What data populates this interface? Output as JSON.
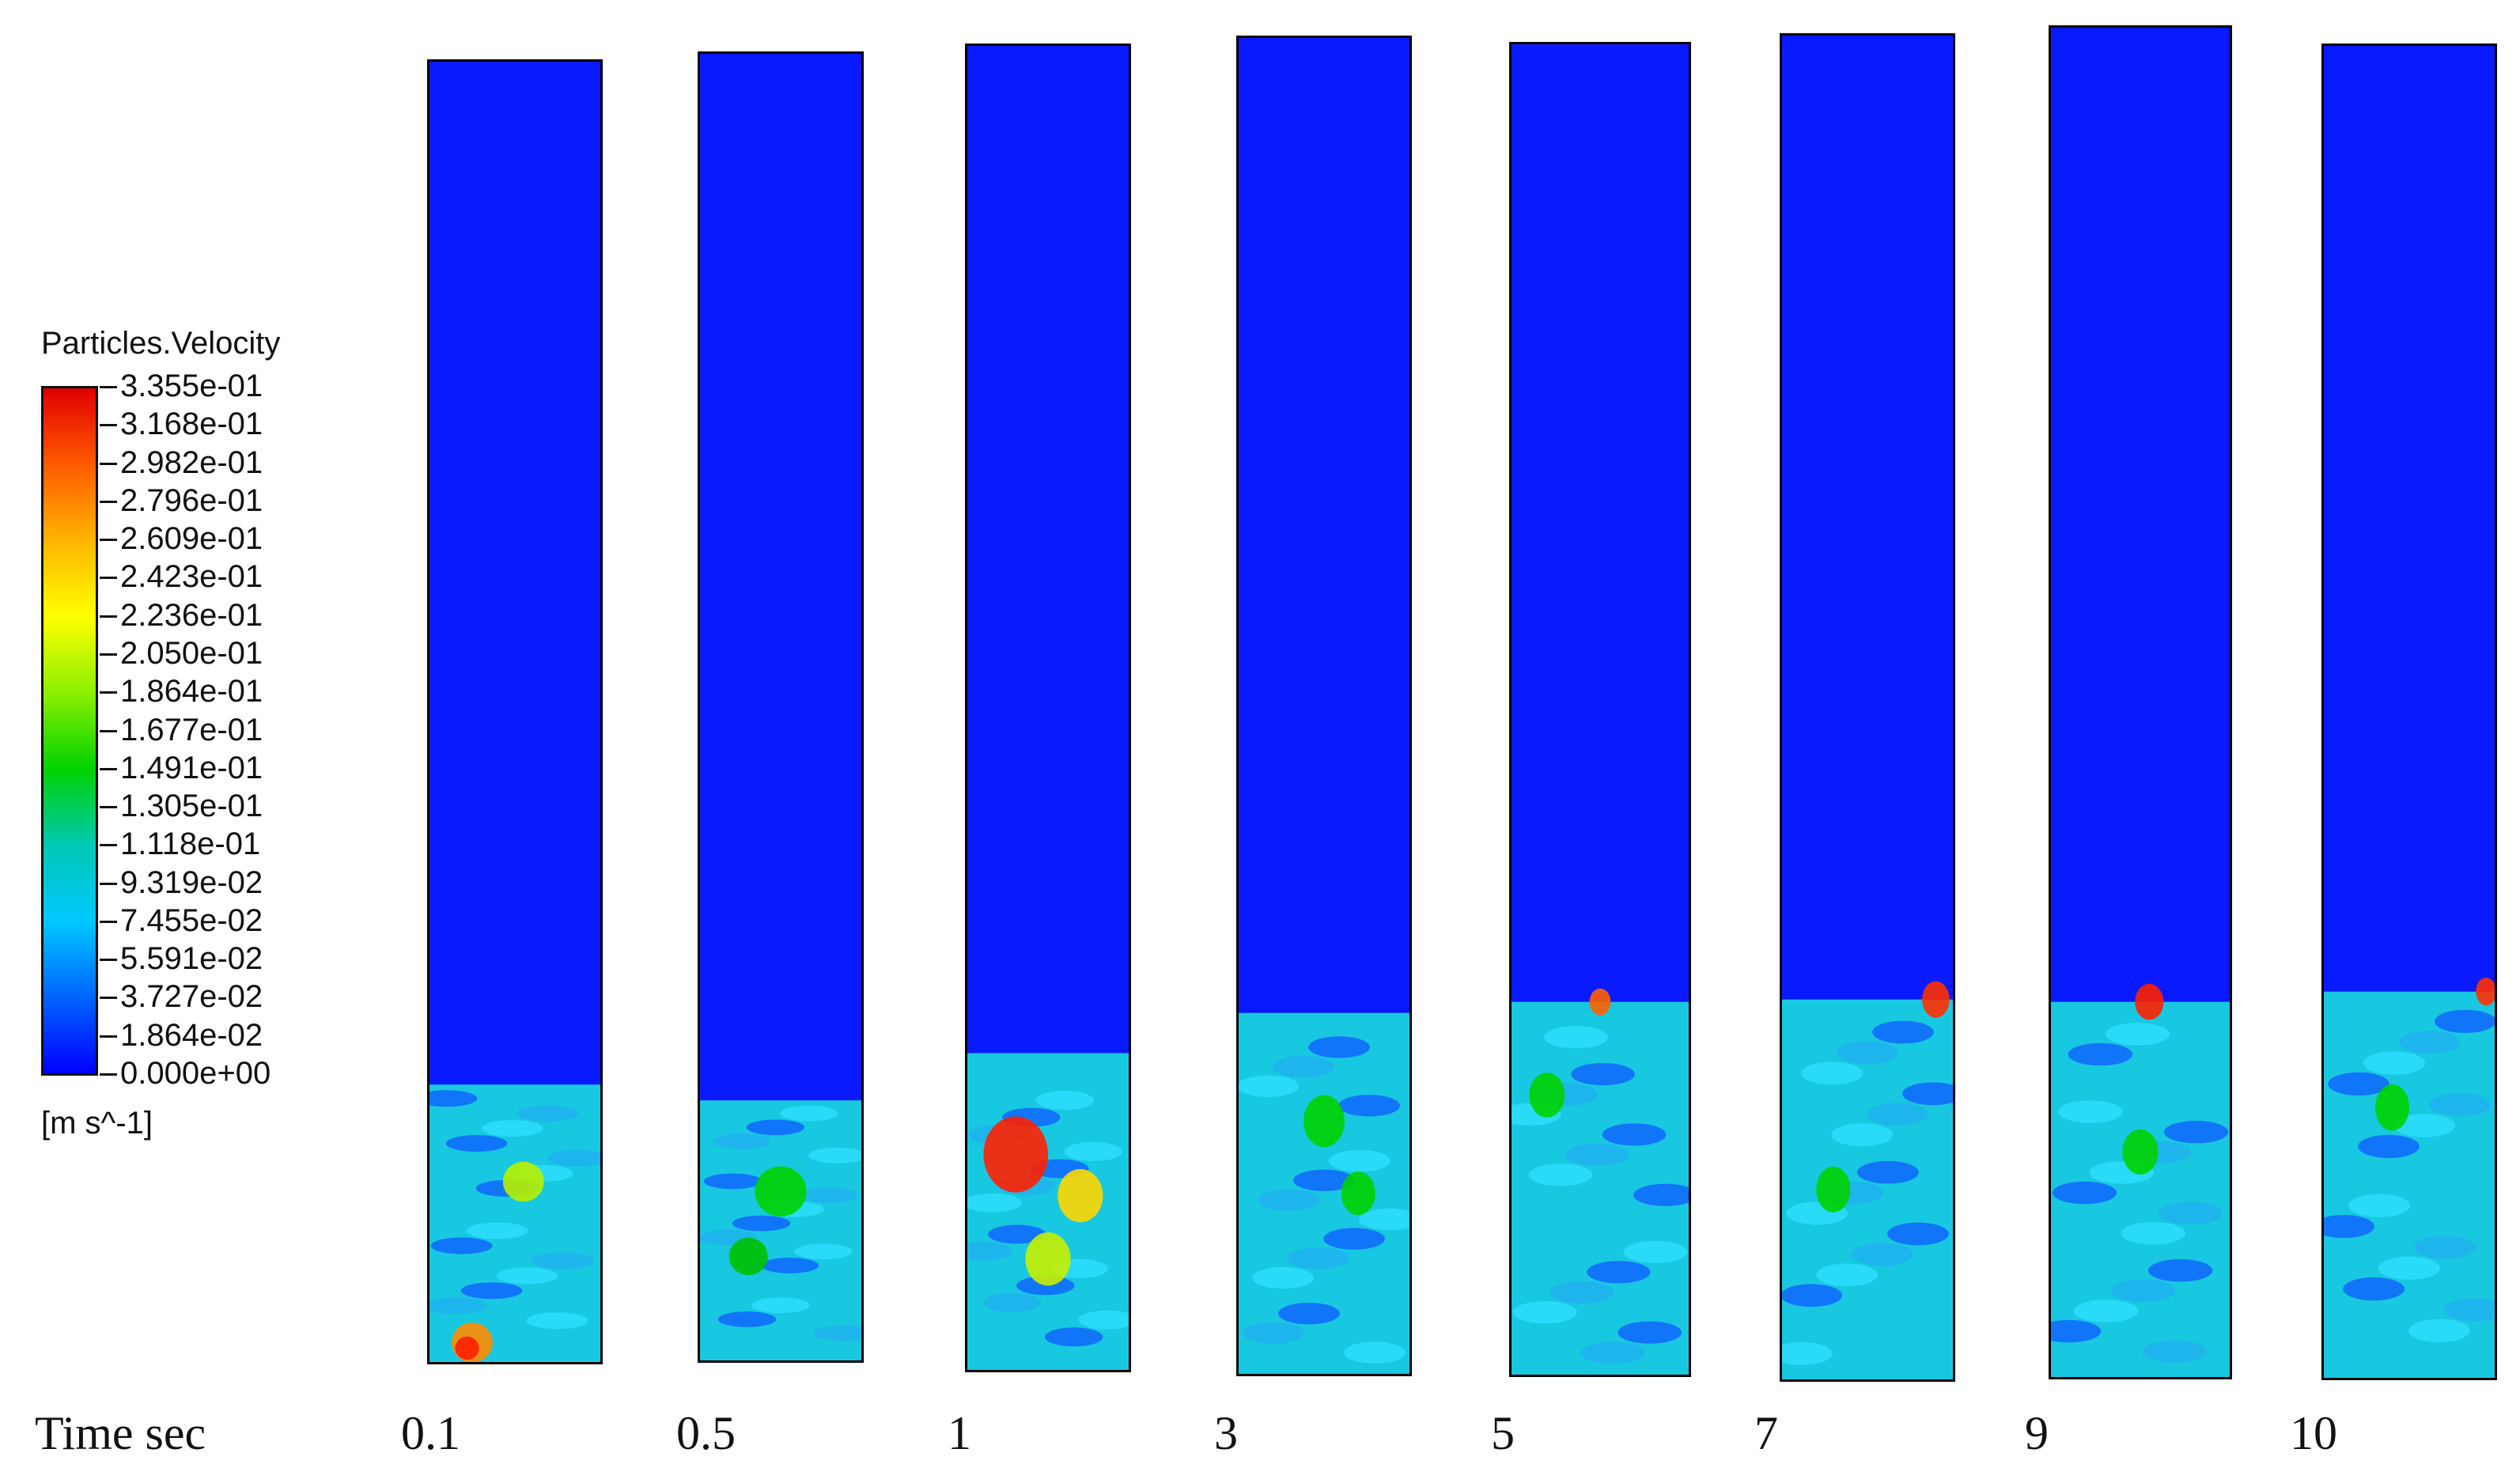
{
  "legend": {
    "title": "Particles.Velocity",
    "unit": "[m s^-1]",
    "ticks": [
      "3.355e-01",
      "3.168e-01",
      "2.982e-01",
      "2.796e-01",
      "2.609e-01",
      "2.423e-01",
      "2.236e-01",
      "2.050e-01",
      "1.864e-01",
      "1.677e-01",
      "1.491e-01",
      "1.305e-01",
      "1.118e-01",
      "9.319e-02",
      "7.455e-02",
      "5.591e-02",
      "3.727e-02",
      "1.864e-02",
      "0.000e+00"
    ],
    "colors": [
      "#e00000",
      "#ff5a00",
      "#ffb400",
      "#ffff00",
      "#8cf000",
      "#00d200",
      "#00c8b4",
      "#00c8ff",
      "#0064ff",
      "#0000ff"
    ]
  },
  "time_axis": {
    "label": "Time sec",
    "values": [
      "0.1",
      "0.5",
      "1",
      "3",
      "5",
      "7",
      "9",
      "10"
    ]
  },
  "panels": [
    {
      "time": "0.1"
    },
    {
      "time": "0.5"
    },
    {
      "time": "1"
    },
    {
      "time": "3"
    },
    {
      "time": "5"
    },
    {
      "time": "7"
    },
    {
      "time": "9"
    },
    {
      "time": "10"
    }
  ]
}
